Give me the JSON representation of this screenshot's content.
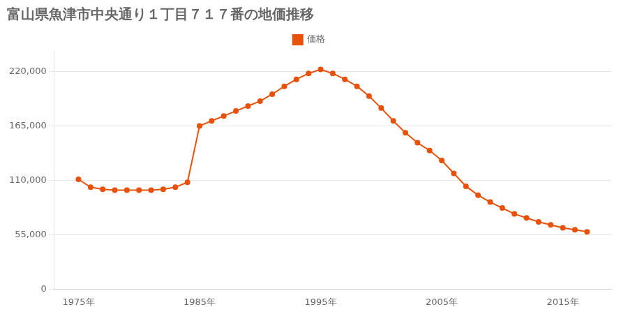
{
  "chart_data": {
    "type": "line",
    "title": "富山県魚津市中央通り１丁目７１７番の地価推移",
    "x": [
      1975,
      1976,
      1977,
      1978,
      1979,
      1980,
      1981,
      1982,
      1983,
      1984,
      1985,
      1986,
      1987,
      1988,
      1989,
      1990,
      1991,
      1992,
      1993,
      1994,
      1995,
      1996,
      1997,
      1998,
      1999,
      2000,
      2001,
      2002,
      2003,
      2004,
      2005,
      2006,
      2007,
      2008,
      2009,
      2010,
      2011,
      2012,
      2013,
      2014,
      2015,
      2016,
      2017
    ],
    "series": [
      {
        "name": "価格",
        "color": "#E8510A",
        "marker": "circle",
        "values": [
          111000,
          103000,
          101000,
          100000,
          100000,
          100000,
          100000,
          101000,
          103000,
          108000,
          165000,
          170000,
          175000,
          180000,
          185000,
          190000,
          197000,
          205000,
          212000,
          218000,
          222000,
          218000,
          212000,
          205000,
          195000,
          183000,
          170000,
          158000,
          148000,
          140000,
          130000,
          117000,
          104000,
          95000,
          88000,
          82000,
          76000,
          72000,
          68000,
          65000,
          62000,
          60000,
          58000
        ]
      }
    ],
    "xlim": [
      1973,
      2019
    ],
    "xticks": [
      {
        "value": 1975,
        "label": "1975年"
      },
      {
        "value": 1985,
        "label": "1985年"
      },
      {
        "value": 1995,
        "label": "1995年"
      },
      {
        "value": 2005,
        "label": "2005年"
      },
      {
        "value": 2015,
        "label": "2015年"
      }
    ],
    "ylim": [
      0,
      240000
    ],
    "yticks": [
      0,
      {
        "value": 55000,
        "label": "55,000"
      },
      {
        "value": 110000,
        "label": "110,000"
      },
      {
        "value": 165000,
        "label": "165,000"
      },
      {
        "value": 220000,
        "label": "220,000"
      }
    ],
    "grid": "y",
    "legend": "top"
  }
}
